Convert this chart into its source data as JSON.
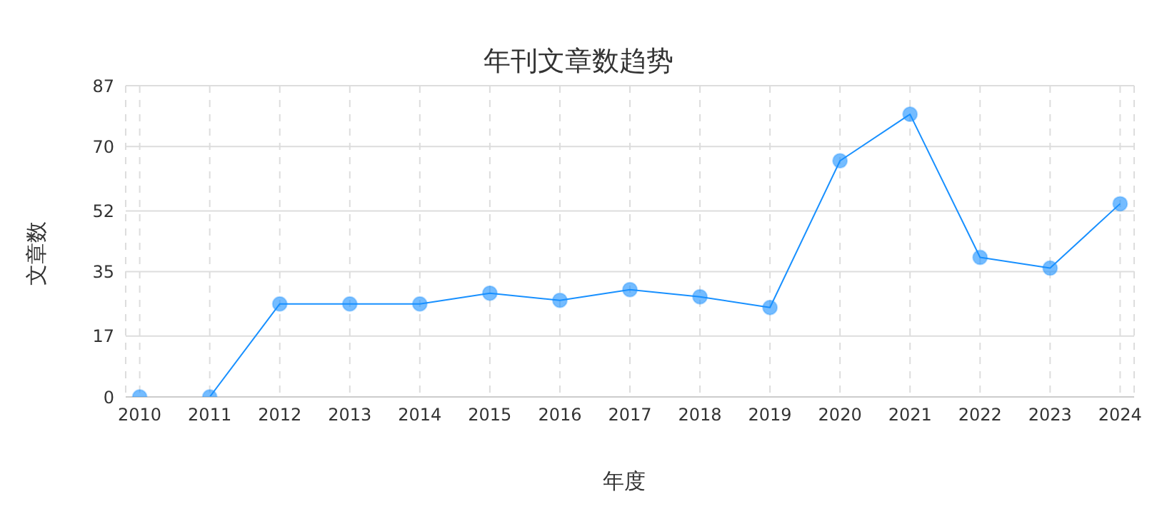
{
  "chart_data": {
    "type": "line",
    "title": "年刊文章数趋势",
    "xlabel": "年度",
    "ylabel": "文章数",
    "categories": [
      "2010",
      "2011",
      "2012",
      "2013",
      "2014",
      "2015",
      "2016",
      "2017",
      "2018",
      "2019",
      "2020",
      "2021",
      "2022",
      "2023",
      "2024"
    ],
    "series": [
      {
        "color": "#1890ff",
        "values": [
          0,
          0,
          26,
          26,
          26,
          29,
          27,
          30,
          28,
          25,
          66,
          79,
          39,
          36,
          54
        ]
      }
    ],
    "ylim": [
      0,
      87
    ],
    "yticks": [
      0,
      17,
      35,
      52,
      70,
      87
    ],
    "grid": true,
    "marker": "circle",
    "line_style": "solid"
  }
}
